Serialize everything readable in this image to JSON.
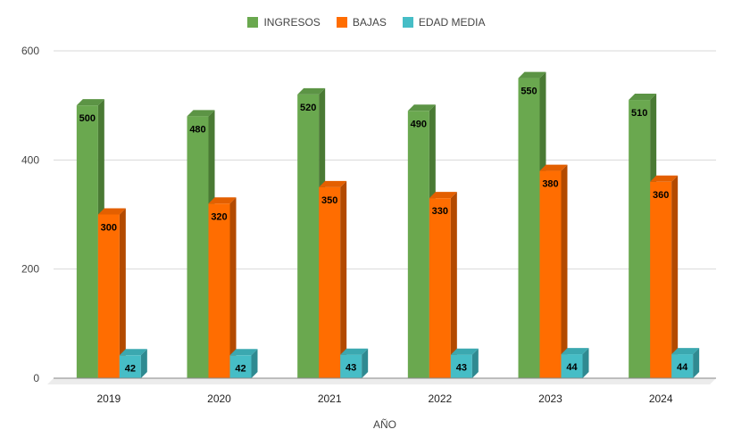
{
  "chart_data": {
    "type": "bar",
    "style": "3d",
    "categories": [
      "2019",
      "2020",
      "2021",
      "2022",
      "2023",
      "2024"
    ],
    "series": [
      {
        "name": "INGRESOS",
        "values": [
          500,
          480,
          520,
          490,
          550,
          510
        ],
        "color": "#6aa84f",
        "side_color": "#4a7a34",
        "top_color": "#5c9445"
      },
      {
        "name": "BAJAS",
        "values": [
          300,
          320,
          350,
          330,
          380,
          360
        ],
        "color": "#ff6d01",
        "side_color": "#b34a00",
        "top_color": "#e35f00"
      },
      {
        "name": "EDAD MEDIA",
        "values": [
          42,
          42,
          43,
          43,
          44,
          44
        ],
        "color": "#46bdc6",
        "side_color": "#2f8a91",
        "top_color": "#3ba8b0"
      }
    ],
    "xlabel": "AÑO",
    "ylabel": "",
    "ylim": [
      0,
      600
    ],
    "yticks": [
      0,
      200,
      400,
      600
    ],
    "grid": true,
    "legend_position": "top"
  }
}
